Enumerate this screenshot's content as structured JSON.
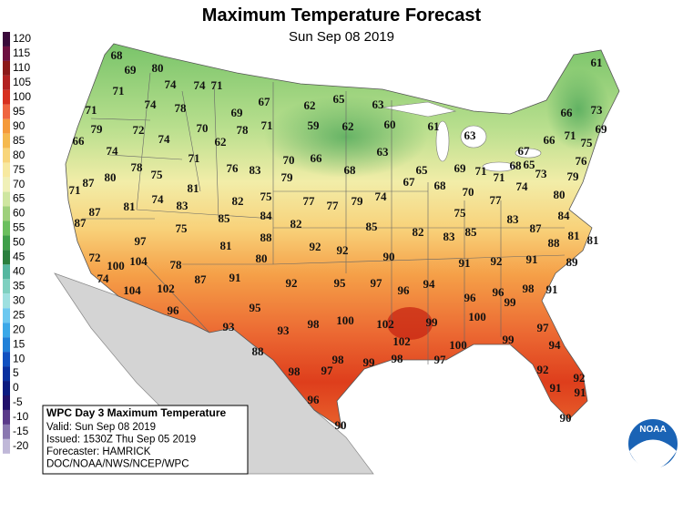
{
  "header": {
    "title": "Maximum Temperature Forecast",
    "subtitle": "Sun Sep 08 2019"
  },
  "legend": {
    "values": [
      120,
      115,
      110,
      105,
      100,
      95,
      90,
      85,
      80,
      75,
      70,
      65,
      60,
      55,
      50,
      45,
      40,
      35,
      30,
      25,
      20,
      15,
      10,
      5,
      0,
      -5,
      -10,
      -15,
      -20
    ]
  },
  "temperatures": [
    68,
    61,
    69,
    80,
    71,
    74,
    74,
    71,
    67,
    62,
    65,
    63,
    71,
    74,
    78,
    69,
    66,
    73,
    79,
    72,
    70,
    78,
    71,
    59,
    62,
    60,
    61,
    69,
    66,
    74,
    62,
    63,
    66,
    71,
    75,
    74,
    71,
    63,
    67,
    70,
    66,
    76,
    83,
    78,
    75,
    68,
    65,
    69,
    71,
    71,
    68,
    65,
    73,
    79,
    76,
    80,
    87,
    71,
    79,
    67,
    68,
    81,
    70,
    77,
    74,
    80,
    74,
    82,
    75,
    77,
    77,
    79,
    74,
    87,
    81,
    83,
    85,
    84,
    75,
    83,
    84,
    87,
    75,
    82,
    85,
    82,
    83,
    85,
    87,
    81,
    81,
    88,
    97,
    81,
    88,
    92,
    92,
    72,
    100,
    104,
    78,
    80,
    90,
    91,
    92,
    91,
    89,
    74,
    87,
    91,
    92,
    95,
    97,
    96,
    94,
    104,
    102,
    96,
    96,
    98,
    91,
    95,
    99,
    100,
    96,
    93,
    93,
    98,
    100,
    102,
    99,
    97,
    102,
    100,
    99,
    88,
    94,
    98,
    99,
    98,
    97,
    98,
    97,
    92,
    92,
    91,
    91,
    96,
    90,
    90
  ],
  "info": {
    "title": "WPC Day 3 Maximum Temperature",
    "lines": [
      "Valid: Sun Sep 08 2019",
      "Issued: 1530Z Thu Sep 05 2019",
      "Forecaster: HAMRICK",
      "DOC/NOAA/NWS/NCEP/WPC"
    ]
  },
  "logo": "NOAA"
}
